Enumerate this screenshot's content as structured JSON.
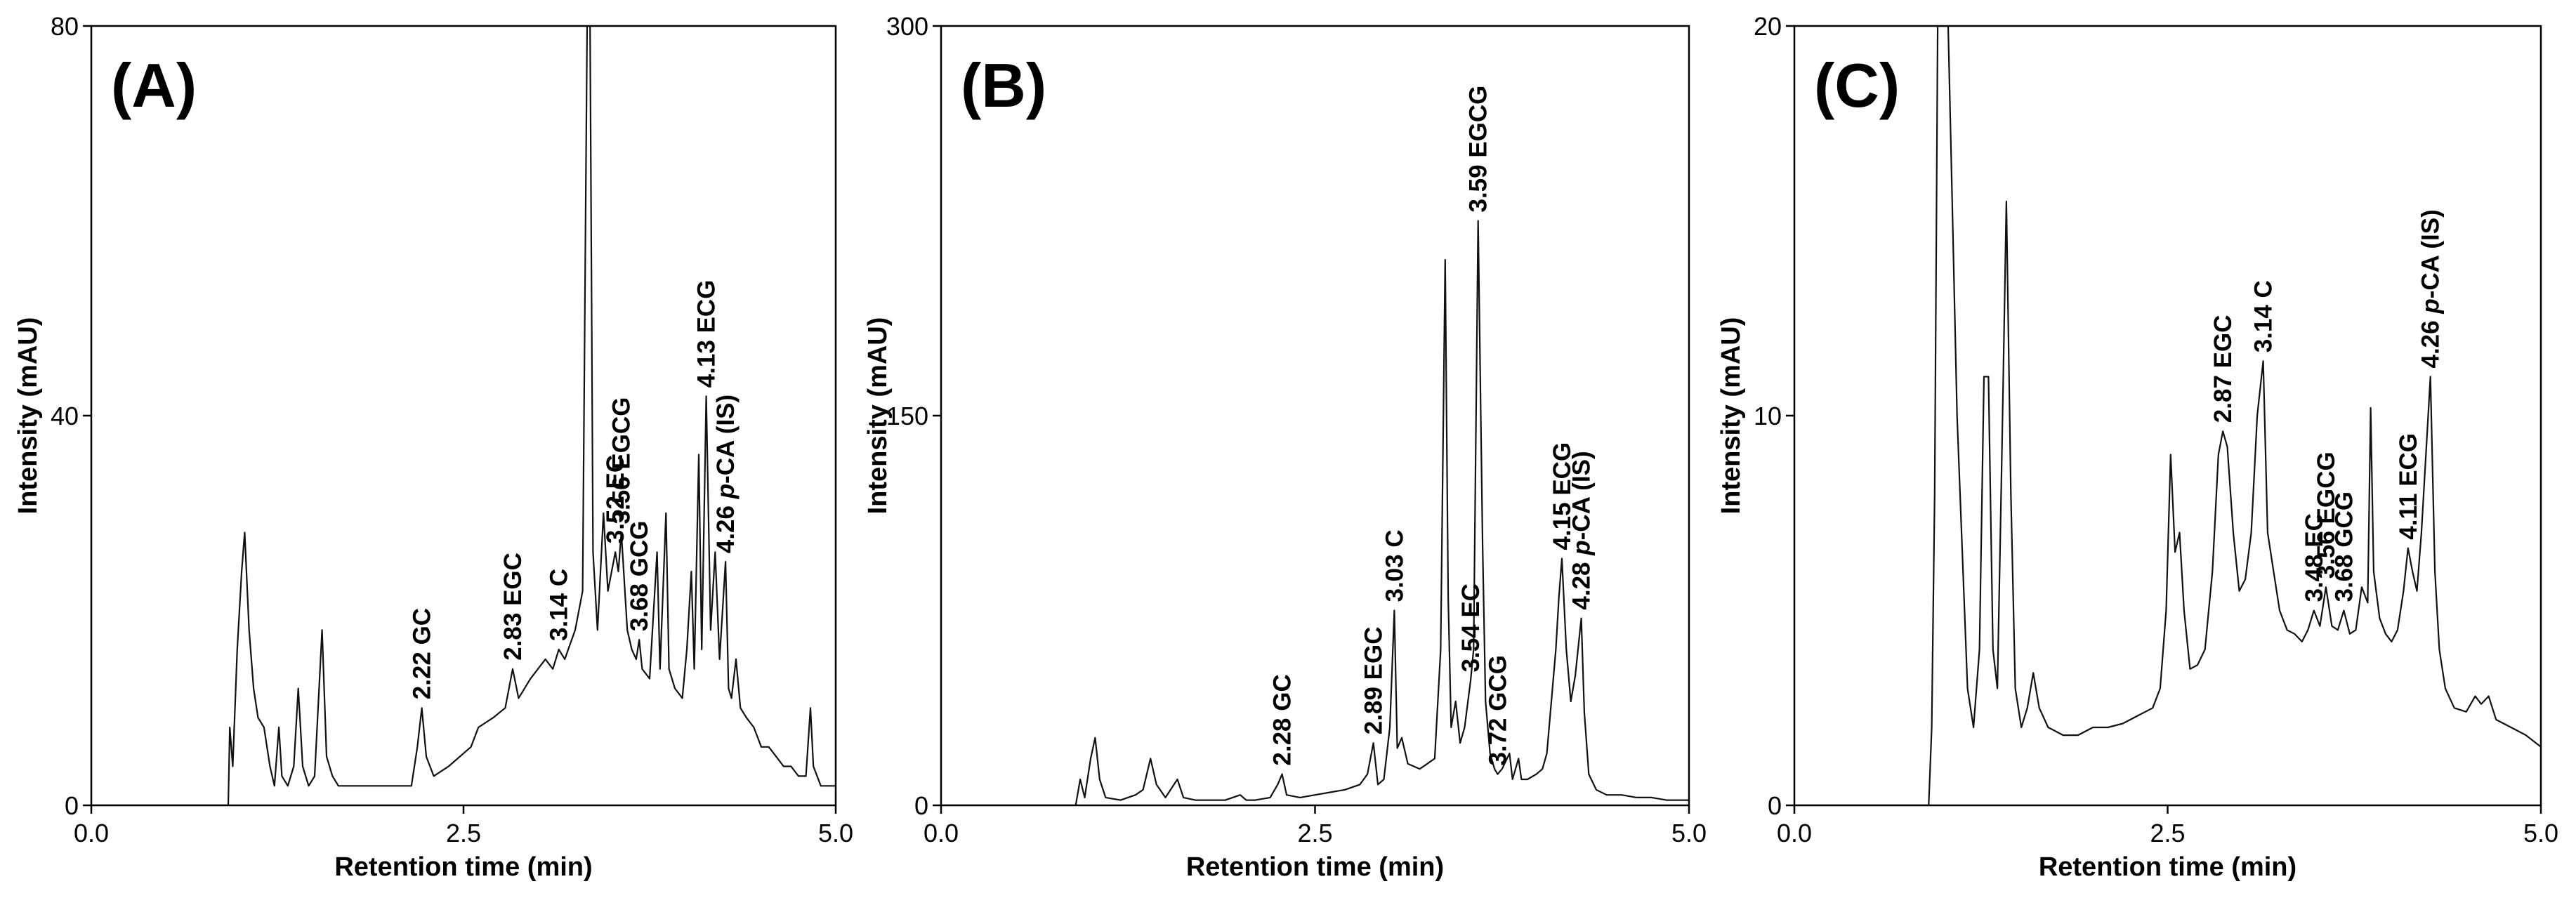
{
  "chart_data": [
    {
      "type": "line",
      "panel_label": "(A)",
      "xlabel": "Retention time (min)",
      "ylabel": "Intensity (mAU)",
      "xlim": [
        0,
        5
      ],
      "ylim": [
        0,
        80
      ],
      "xticks": [
        "0.0",
        "2.5",
        "5.0"
      ],
      "yticks": [
        "0",
        "40",
        "80"
      ],
      "peaks": [
        {
          "x": 2.22,
          "y": 10,
          "label": "2.22  GC"
        },
        {
          "x": 2.83,
          "y": 14,
          "label": "2.83  EGC"
        },
        {
          "x": 3.14,
          "y": 16,
          "label": "3.14  C"
        },
        {
          "x": 3.52,
          "y": 26,
          "label": "3.52  EC"
        },
        {
          "x": 3.56,
          "y": 28,
          "label": "3.56  EGCG"
        },
        {
          "x": 3.68,
          "y": 17,
          "label": "3.68  GCG"
        },
        {
          "x": 4.13,
          "y": 42,
          "label": "4.13  ECG"
        },
        {
          "x": 4.26,
          "y": 25,
          "label": "4.26  p-CA (IS)"
        }
      ],
      "trace": [
        [
          0.0,
          0
        ],
        [
          0.92,
          0
        ],
        [
          0.93,
          8
        ],
        [
          0.95,
          4
        ],
        [
          0.98,
          16
        ],
        [
          1.01,
          24
        ],
        [
          1.03,
          28
        ],
        [
          1.06,
          18
        ],
        [
          1.09,
          12
        ],
        [
          1.12,
          9
        ],
        [
          1.16,
          8
        ],
        [
          1.2,
          4
        ],
        [
          1.23,
          2
        ],
        [
          1.26,
          8
        ],
        [
          1.28,
          3
        ],
        [
          1.32,
          2
        ],
        [
          1.36,
          4
        ],
        [
          1.39,
          12
        ],
        [
          1.42,
          4
        ],
        [
          1.46,
          2
        ],
        [
          1.5,
          3
        ],
        [
          1.55,
          18
        ],
        [
          1.58,
          5
        ],
        [
          1.62,
          3
        ],
        [
          1.66,
          2
        ],
        [
          1.8,
          2
        ],
        [
          2.0,
          2
        ],
        [
          2.15,
          2
        ],
        [
          2.19,
          6
        ],
        [
          2.22,
          10
        ],
        [
          2.25,
          5
        ],
        [
          2.3,
          3
        ],
        [
          2.4,
          4
        ],
        [
          2.55,
          6
        ],
        [
          2.6,
          8
        ],
        [
          2.7,
          9
        ],
        [
          2.78,
          10
        ],
        [
          2.83,
          14
        ],
        [
          2.87,
          11
        ],
        [
          2.95,
          13
        ],
        [
          3.0,
          14
        ],
        [
          3.05,
          15
        ],
        [
          3.1,
          14
        ],
        [
          3.14,
          16
        ],
        [
          3.18,
          15
        ],
        [
          3.25,
          18
        ],
        [
          3.3,
          22
        ],
        [
          3.33,
          80
        ],
        [
          3.35,
          80
        ],
        [
          3.37,
          26
        ],
        [
          3.4,
          18
        ],
        [
          3.44,
          30
        ],
        [
          3.47,
          22
        ],
        [
          3.52,
          26
        ],
        [
          3.54,
          24
        ],
        [
          3.56,
          28
        ],
        [
          3.6,
          18
        ],
        [
          3.63,
          16
        ],
        [
          3.66,
          15
        ],
        [
          3.68,
          17
        ],
        [
          3.7,
          14
        ],
        [
          3.75,
          13
        ],
        [
          3.8,
          26
        ],
        [
          3.82,
          14
        ],
        [
          3.86,
          30
        ],
        [
          3.88,
          14
        ],
        [
          3.92,
          12
        ],
        [
          3.97,
          11
        ],
        [
          4.0,
          16
        ],
        [
          4.03,
          24
        ],
        [
          4.05,
          14
        ],
        [
          4.08,
          36
        ],
        [
          4.1,
          16
        ],
        [
          4.13,
          42
        ],
        [
          4.16,
          18
        ],
        [
          4.19,
          26
        ],
        [
          4.22,
          15
        ],
        [
          4.26,
          25
        ],
        [
          4.28,
          12
        ],
        [
          4.3,
          11
        ],
        [
          4.33,
          15
        ],
        [
          4.36,
          10
        ],
        [
          4.4,
          9
        ],
        [
          4.45,
          8
        ],
        [
          4.5,
          6
        ],
        [
          4.55,
          6
        ],
        [
          4.6,
          5
        ],
        [
          4.65,
          4
        ],
        [
          4.7,
          4
        ],
        [
          4.75,
          3
        ],
        [
          4.8,
          3
        ],
        [
          4.83,
          10
        ],
        [
          4.85,
          4
        ],
        [
          4.9,
          2
        ],
        [
          5.0,
          2
        ]
      ]
    },
    {
      "type": "line",
      "panel_label": "(B)",
      "xlabel": "Retention time (min)",
      "ylabel": "Intensity (mAU)",
      "xlim": [
        0,
        5
      ],
      "ylim": [
        0,
        300
      ],
      "xticks": [
        "0.0",
        "2.5",
        "5.0"
      ],
      "yticks": [
        "0",
        "150",
        "300"
      ],
      "peaks": [
        {
          "x": 2.28,
          "y": 12,
          "label": "2.28  GC"
        },
        {
          "x": 2.89,
          "y": 24,
          "label": "2.89  EGC"
        },
        {
          "x": 3.03,
          "y": 75,
          "label": "3.03  C"
        },
        {
          "x": 3.54,
          "y": 48,
          "label": "3.54  EC"
        },
        {
          "x": 3.59,
          "y": 225,
          "label": "3.59  EGCG"
        },
        {
          "x": 3.72,
          "y": 12,
          "label": "3.72  GCG"
        },
        {
          "x": 4.15,
          "y": 95,
          "label": "4.15  ECG"
        },
        {
          "x": 4.28,
          "y": 72,
          "label": "4.28  p-CA (IS)"
        }
      ],
      "trace": [
        [
          0.0,
          0
        ],
        [
          0.9,
          0
        ],
        [
          0.93,
          10
        ],
        [
          0.96,
          3
        ],
        [
          1.0,
          18
        ],
        [
          1.03,
          26
        ],
        [
          1.06,
          10
        ],
        [
          1.1,
          3
        ],
        [
          1.2,
          2
        ],
        [
          1.3,
          4
        ],
        [
          1.35,
          6
        ],
        [
          1.4,
          18
        ],
        [
          1.44,
          8
        ],
        [
          1.5,
          3
        ],
        [
          1.58,
          10
        ],
        [
          1.62,
          3
        ],
        [
          1.7,
          2
        ],
        [
          1.9,
          2
        ],
        [
          2.0,
          4
        ],
        [
          2.04,
          2
        ],
        [
          2.1,
          2
        ],
        [
          2.2,
          3
        ],
        [
          2.25,
          8
        ],
        [
          2.28,
          12
        ],
        [
          2.31,
          4
        ],
        [
          2.4,
          3
        ],
        [
          2.5,
          4
        ],
        [
          2.6,
          5
        ],
        [
          2.7,
          6
        ],
        [
          2.8,
          8
        ],
        [
          2.85,
          12
        ],
        [
          2.89,
          24
        ],
        [
          2.92,
          8
        ],
        [
          2.96,
          10
        ],
        [
          3.0,
          30
        ],
        [
          3.03,
          75
        ],
        [
          3.05,
          22
        ],
        [
          3.08,
          26
        ],
        [
          3.12,
          16
        ],
        [
          3.2,
          14
        ],
        [
          3.25,
          16
        ],
        [
          3.3,
          18
        ],
        [
          3.34,
          60
        ],
        [
          3.37,
          210
        ],
        [
          3.39,
          80
        ],
        [
          3.41,
          30
        ],
        [
          3.44,
          40
        ],
        [
          3.47,
          24
        ],
        [
          3.5,
          30
        ],
        [
          3.54,
          48
        ],
        [
          3.56,
          60
        ],
        [
          3.59,
          225
        ],
        [
          3.62,
          100
        ],
        [
          3.64,
          40
        ],
        [
          3.67,
          20
        ],
        [
          3.7,
          14
        ],
        [
          3.72,
          12
        ],
        [
          3.75,
          14
        ],
        [
          3.8,
          20
        ],
        [
          3.82,
          10
        ],
        [
          3.86,
          18
        ],
        [
          3.88,
          10
        ],
        [
          3.92,
          10
        ],
        [
          3.98,
          12
        ],
        [
          4.02,
          14
        ],
        [
          4.05,
          20
        ],
        [
          4.08,
          40
        ],
        [
          4.11,
          60
        ],
        [
          4.13,
          80
        ],
        [
          4.15,
          95
        ],
        [
          4.18,
          60
        ],
        [
          4.21,
          40
        ],
        [
          4.24,
          50
        ],
        [
          4.28,
          72
        ],
        [
          4.3,
          36
        ],
        [
          4.33,
          12
        ],
        [
          4.38,
          6
        ],
        [
          4.45,
          4
        ],
        [
          4.55,
          4
        ],
        [
          4.65,
          3
        ],
        [
          4.75,
          3
        ],
        [
          4.85,
          2
        ],
        [
          5.0,
          2
        ]
      ]
    },
    {
      "type": "line",
      "panel_label": "(C)",
      "xlabel": "Retention time (min)",
      "ylabel": "Intensity (mAU)",
      "xlim": [
        0,
        5
      ],
      "ylim": [
        0,
        20
      ],
      "xticks": [
        "0.0",
        "2.5",
        "5.0"
      ],
      "yticks": [
        "0",
        "10",
        "20"
      ],
      "peaks": [
        {
          "x": 2.87,
          "y": 9.6,
          "label": "2.87  EGC"
        },
        {
          "x": 3.14,
          "y": 11.4,
          "label": "3.14  C"
        },
        {
          "x": 3.48,
          "y": 5.0,
          "label": "3.48  EC"
        },
        {
          "x": 3.56,
          "y": 5.6,
          "label": "3.56  EGCG"
        },
        {
          "x": 3.68,
          "y": 5.0,
          "label": "3.68  GCG"
        },
        {
          "x": 4.11,
          "y": 6.6,
          "label": "4.11  ECG"
        },
        {
          "x": 4.26,
          "y": 11.0,
          "label": "4.26  p-CA (IS)"
        }
      ],
      "trace": [
        [
          0.0,
          0
        ],
        [
          0.9,
          0
        ],
        [
          0.92,
          2
        ],
        [
          0.94,
          8
        ],
        [
          0.96,
          20
        ],
        [
          0.98,
          20
        ],
        [
          1.0,
          20
        ],
        [
          1.03,
          20
        ],
        [
          1.06,
          15
        ],
        [
          1.09,
          10
        ],
        [
          1.13,
          6
        ],
        [
          1.16,
          3
        ],
        [
          1.2,
          2
        ],
        [
          1.24,
          4
        ],
        [
          1.27,
          11
        ],
        [
          1.3,
          11
        ],
        [
          1.33,
          4
        ],
        [
          1.36,
          3
        ],
        [
          1.39,
          9
        ],
        [
          1.42,
          15.5
        ],
        [
          1.45,
          8
        ],
        [
          1.48,
          3
        ],
        [
          1.52,
          2
        ],
        [
          1.56,
          2.5
        ],
        [
          1.6,
          3.4
        ],
        [
          1.64,
          2.5
        ],
        [
          1.7,
          2
        ],
        [
          1.8,
          1.8
        ],
        [
          1.9,
          1.8
        ],
        [
          2.0,
          2
        ],
        [
          2.1,
          2
        ],
        [
          2.2,
          2.1
        ],
        [
          2.3,
          2.3
        ],
        [
          2.4,
          2.5
        ],
        [
          2.45,
          3
        ],
        [
          2.49,
          5
        ],
        [
          2.52,
          9
        ],
        [
          2.55,
          6.5
        ],
        [
          2.58,
          7
        ],
        [
          2.61,
          5
        ],
        [
          2.65,
          3.5
        ],
        [
          2.7,
          3.6
        ],
        [
          2.75,
          4
        ],
        [
          2.8,
          6
        ],
        [
          2.84,
          9
        ],
        [
          2.87,
          9.6
        ],
        [
          2.9,
          9.2
        ],
        [
          2.94,
          7
        ],
        [
          2.98,
          5.5
        ],
        [
          3.02,
          5.8
        ],
        [
          3.06,
          7
        ],
        [
          3.1,
          10
        ],
        [
          3.14,
          11.4
        ],
        [
          3.17,
          7
        ],
        [
          3.21,
          6
        ],
        [
          3.25,
          5
        ],
        [
          3.3,
          4.5
        ],
        [
          3.35,
          4.4
        ],
        [
          3.4,
          4.2
        ],
        [
          3.44,
          4.5
        ],
        [
          3.48,
          5.0
        ],
        [
          3.52,
          4.6
        ],
        [
          3.56,
          5.6
        ],
        [
          3.6,
          4.6
        ],
        [
          3.64,
          4.5
        ],
        [
          3.68,
          5.0
        ],
        [
          3.72,
          4.4
        ],
        [
          3.76,
          4.5
        ],
        [
          3.8,
          5.6
        ],
        [
          3.84,
          5.2
        ],
        [
          3.86,
          10.2
        ],
        [
          3.88,
          6
        ],
        [
          3.92,
          4.8
        ],
        [
          3.96,
          4.4
        ],
        [
          4.0,
          4.2
        ],
        [
          4.04,
          4.5
        ],
        [
          4.08,
          5.5
        ],
        [
          4.11,
          6.6
        ],
        [
          4.14,
          6
        ],
        [
          4.17,
          5.5
        ],
        [
          4.2,
          7
        ],
        [
          4.23,
          9
        ],
        [
          4.26,
          11.0
        ],
        [
          4.29,
          6
        ],
        [
          4.32,
          4
        ],
        [
          4.36,
          3
        ],
        [
          4.42,
          2.5
        ],
        [
          4.5,
          2.4
        ],
        [
          4.56,
          2.8
        ],
        [
          4.6,
          2.6
        ],
        [
          4.65,
          2.8
        ],
        [
          4.7,
          2.2
        ],
        [
          4.8,
          2.0
        ],
        [
          4.9,
          1.8
        ],
        [
          5.0,
          1.5
        ]
      ]
    }
  ]
}
